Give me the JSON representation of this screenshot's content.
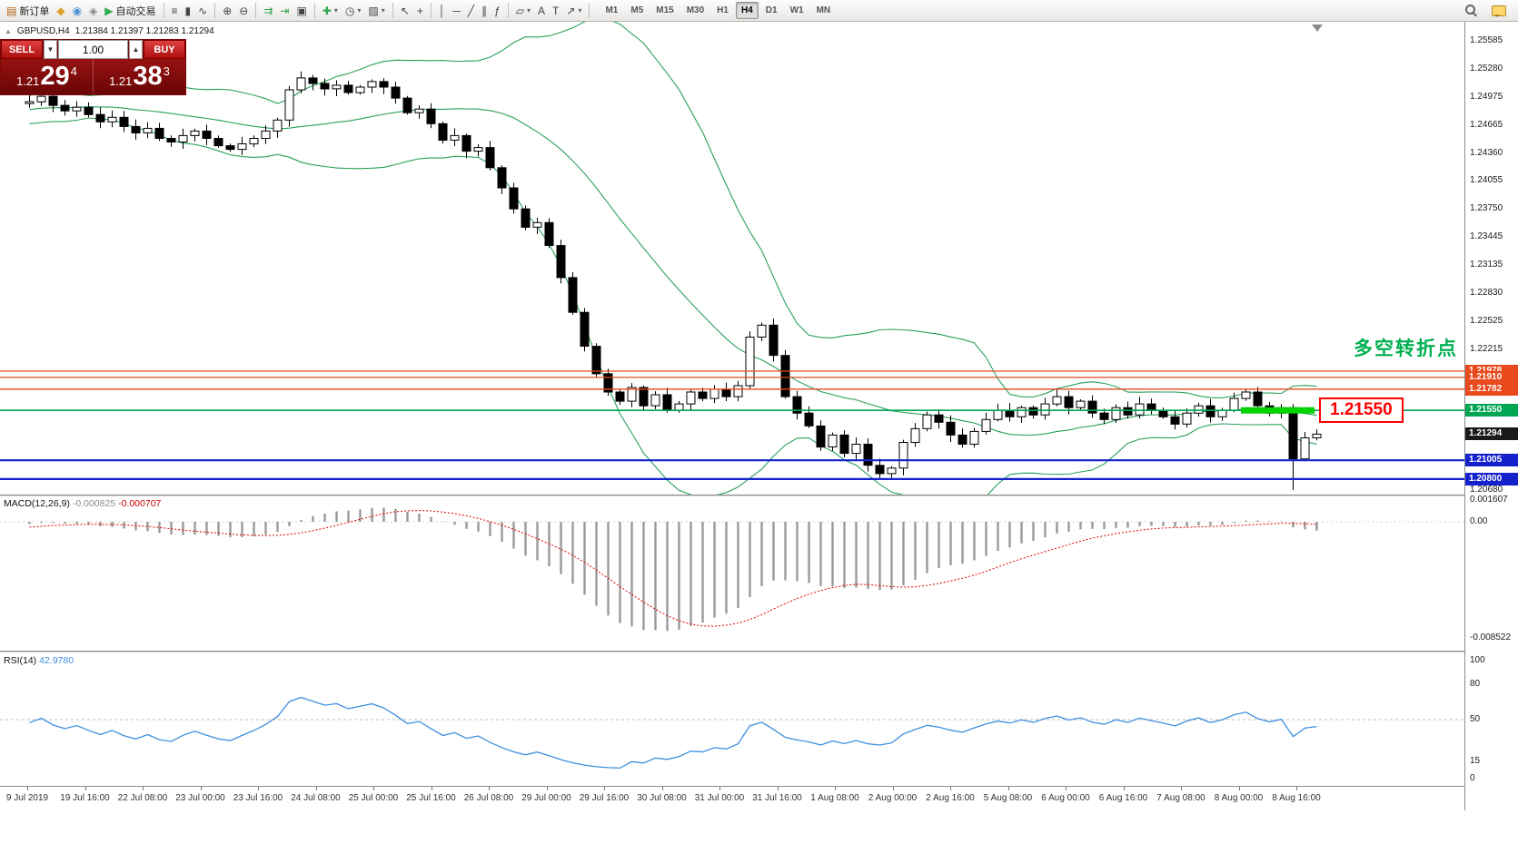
{
  "toolbar": {
    "left": [
      {
        "name": "new-order-button",
        "glyph": "▤",
        "label": "新订单",
        "color": "#b05c10"
      },
      {
        "name": "mql5-services-icon",
        "glyph": "◆",
        "color": "#e0a030"
      },
      {
        "name": "community-icon",
        "glyph": "◉",
        "color": "#4a90d9"
      },
      {
        "name": "market-icon",
        "glyph": "◈",
        "color": "#888888"
      },
      {
        "name": "autotrading-button",
        "glyph": "▶",
        "label": "自动交易",
        "color": "#2fa84f"
      },
      {
        "sep": true
      },
      {
        "name": "bar-chart-button",
        "glyph": "≡"
      },
      {
        "name": "candlestick-chart-button",
        "glyph": "▮"
      },
      {
        "name": "line-chart-button",
        "glyph": "∿"
      },
      {
        "sep": true
      },
      {
        "name": "zoom-in-button",
        "glyph": "⊕"
      },
      {
        "name": "zoom-out-button",
        "glyph": "⊖"
      },
      {
        "sep": true
      },
      {
        "name": "auto-scroll-button",
        "glyph": "⇉",
        "color": "#2fa84f"
      },
      {
        "name": "chart-shift-button",
        "glyph": "⇥",
        "color": "#2fa84f"
      },
      {
        "name": "tile-windows-button",
        "glyph": "▣"
      },
      {
        "sep": true
      },
      {
        "name": "add-indicator-button",
        "glyph": "✚",
        "color": "#2fa84f",
        "dd": true
      },
      {
        "name": "periods-button",
        "glyph": "◷",
        "dd": true
      },
      {
        "name": "templates-button",
        "glyph": "▨",
        "dd": true
      },
      {
        "sep": true
      },
      {
        "name": "cursor-button",
        "glyph": "↖"
      },
      {
        "name": "crosshair-button",
        "glyph": "+"
      },
      {
        "sep": true
      },
      {
        "name": "vertical-line-button",
        "glyph": "│"
      },
      {
        "name": "horizontal-line-button",
        "glyph": "─"
      },
      {
        "name": "trendline-button",
        "glyph": "╱"
      },
      {
        "name": "channel-button",
        "glyph": "∥"
      },
      {
        "name": "fibonacci-button",
        "glyph": "ƒ"
      },
      {
        "sep": true
      },
      {
        "name": "shapes-button",
        "glyph": "▱",
        "dd": true
      },
      {
        "name": "text-button",
        "glyph": "A"
      },
      {
        "name": "label-button",
        "glyph": "T"
      },
      {
        "name": "arrows-button",
        "glyph": "↗",
        "dd": true
      },
      {
        "sep": true
      }
    ],
    "timeframes": [
      "M1",
      "M5",
      "M15",
      "M30",
      "H1",
      "H4",
      "D1",
      "W1",
      "MN"
    ],
    "active_timeframe": "H4"
  },
  "chart": {
    "symbol_title": "GBPUSD,H4",
    "ohlc": "1.21384 1.21397 1.21283 1.21294",
    "annotation": "多空转折点",
    "price_tag": "1.21550",
    "trade_panel": {
      "sell_label": "SELL",
      "buy_label": "BUY",
      "volume": "1.00",
      "sell_small": "1.21",
      "sell_big": "29",
      "sell_sup": "4",
      "buy_small": "1.21",
      "buy_big": "38",
      "buy_sup": "3"
    }
  },
  "chart_data": {
    "type": "candlestick",
    "symbol": "GBPUSD",
    "timeframe": "H4",
    "price_axis": {
      "max": 1.25585,
      "min": 1.2068,
      "ticks": [
        "1.25585",
        "1.25280",
        "1.24975",
        "1.24665",
        "1.24360",
        "1.24055",
        "1.23750",
        "1.23445",
        "1.23135",
        "1.22830",
        "1.22525",
        "1.22215",
        "1.20680"
      ]
    },
    "pre_closes": [
      1.252,
      1.2512,
      1.2505,
      1.251,
      1.2498,
      1.249,
      1.2496,
      1.2488,
      1.248,
      1.2486,
      1.2478,
      1.247,
      1.2476,
      1.2482,
      1.2475,
      1.2468,
      1.2474,
      1.248,
      1.2486,
      1.2492,
      1.2485,
      1.2478,
      1.2484,
      1.249,
      1.2495,
      1.2488,
      1.2482,
      1.2488,
      1.2494,
      1.249
    ],
    "closes": [
      1.2492,
      1.2498,
      1.2488,
      1.2482,
      1.2486,
      1.2478,
      1.247,
      1.2475,
      1.2465,
      1.2458,
      1.2463,
      1.2452,
      1.2448,
      1.2455,
      1.246,
      1.2452,
      1.2444,
      1.244,
      1.2446,
      1.2452,
      1.246,
      1.2472,
      1.2505,
      1.2518,
      1.2512,
      1.2506,
      1.251,
      1.2502,
      1.2508,
      1.2514,
      1.2508,
      1.2496,
      1.248,
      1.2484,
      1.2468,
      1.245,
      1.2455,
      1.2438,
      1.2442,
      1.242,
      1.2398,
      1.2375,
      1.2355,
      1.236,
      1.2335,
      1.23,
      1.2262,
      1.2225,
      1.2195,
      1.2175,
      1.2165,
      1.218,
      1.216,
      1.2172,
      1.2155,
      1.2162,
      1.2175,
      1.2168,
      1.2178,
      1.217,
      1.2182,
      1.2235,
      1.2248,
      1.2215,
      1.217,
      1.2152,
      1.2138,
      1.2115,
      1.2128,
      1.2108,
      1.2118,
      1.2095,
      1.2086,
      1.2092,
      1.212,
      1.2135,
      1.215,
      1.2142,
      1.2128,
      1.2118,
      1.2132,
      1.2145,
      1.2155,
      1.2148,
      1.2158,
      1.215,
      1.2162,
      1.217,
      1.2158,
      1.2165,
      1.2152,
      1.2145,
      1.2158,
      1.215,
      1.2162,
      1.2155,
      1.2148,
      1.214,
      1.2152,
      1.216,
      1.2148,
      1.2155,
      1.2168,
      1.2175,
      1.216,
      1.2152,
      1.2158,
      1.2102,
      1.2125,
      1.2129
    ],
    "special_wicks": {
      "107": {
        "low": 1.2068
      }
    },
    "bollinger": {
      "period": 20,
      "deviation": 2,
      "color": "#2aa05a"
    },
    "levels": [
      {
        "price": 1.21978,
        "label": "1.21978",
        "color": "#e8491d",
        "line": true,
        "w": 1.3
      },
      {
        "price": 1.2191,
        "label": "1.21910",
        "color": "#e8491d",
        "line": true,
        "w": 1.3
      },
      {
        "price": 1.21782,
        "label": "1.21782",
        "color": "#e8491d",
        "line": true,
        "w": 1.3
      },
      {
        "price": 1.2155,
        "label": "1.21550",
        "color": "#00a651",
        "line": true,
        "w": 1.6,
        "highlight": true
      },
      {
        "price": 1.21294,
        "label": "1.21294",
        "color": "#1a1a1a",
        "line": false
      },
      {
        "price": 1.21005,
        "label": "1.21005",
        "color": "#1522cc",
        "line": true,
        "w": 2.2
      },
      {
        "price": 1.208,
        "label": "1.20800",
        "color": "#1522cc",
        "line": true,
        "w": 2.2
      }
    ],
    "macd": {
      "label": "MACD(12,26,9)",
      "value_main": "-0.000825",
      "value_signal": "-0.000707",
      "axis": [
        "0.001607",
        "0.00",
        "-0.008522"
      ],
      "hist_color": "#9a9a9a",
      "signal_color": "#e60000"
    },
    "rsi": {
      "label": "RSI(14)",
      "value": "42.9780",
      "axis": [
        100,
        80,
        50,
        15,
        0
      ],
      "color": "#3f8fdf",
      "level_dashed": 50
    },
    "time_labels": [
      "9 Jul 2019",
      "19 Jul 16:00",
      "22 Jul 08:00",
      "23 Jul 00:00",
      "23 Jul 16:00",
      "24 Jul 08:00",
      "25 Jul 00:00",
      "25 Jul 16:00",
      "26 Jul 08:00",
      "29 Jul 00:00",
      "29 Jul 16:00",
      "30 Jul 08:00",
      "31 Jul 00:00",
      "31 Jul 16:00",
      "1 Aug 08:00",
      "2 Aug 00:00",
      "2 Aug 16:00",
      "5 Aug 08:00",
      "6 Aug 00:00",
      "6 Aug 16:00",
      "7 Aug 08:00",
      "8 Aug 00:00",
      "8 Aug 16:00"
    ]
  }
}
